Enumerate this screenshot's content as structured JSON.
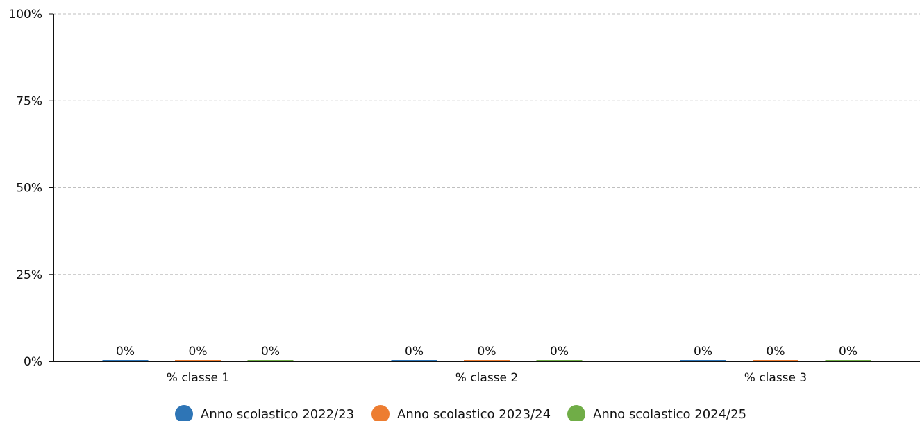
{
  "chart_data": {
    "type": "bar",
    "categories": [
      "% classe 1",
      "% classe 2",
      "% classe 3"
    ],
    "series": [
      {
        "name": "Anno scolastico 2022/23",
        "values": [
          0,
          0,
          0
        ],
        "color": "#2e75b6"
      },
      {
        "name": "Anno scolastico 2023/24",
        "values": [
          0,
          0,
          0
        ],
        "color": "#ed7d31"
      },
      {
        "name": "Anno scolastico 2024/25",
        "values": [
          0,
          0,
          0
        ],
        "color": "#70ad47"
      }
    ],
    "data_labels": [
      [
        "0%",
        "0%",
        "0%"
      ],
      [
        "0%",
        "0%",
        "0%"
      ],
      [
        "0%",
        "0%",
        "0%"
      ]
    ],
    "ylim": [
      0,
      100
    ],
    "y_ticks": [
      0,
      25,
      50,
      75,
      100
    ],
    "y_tick_labels": [
      "0%",
      "25%",
      "50%",
      "75%",
      "100%"
    ],
    "grid": true,
    "legend_position": "bottom-center",
    "title": "",
    "xlabel": "",
    "ylabel": ""
  }
}
